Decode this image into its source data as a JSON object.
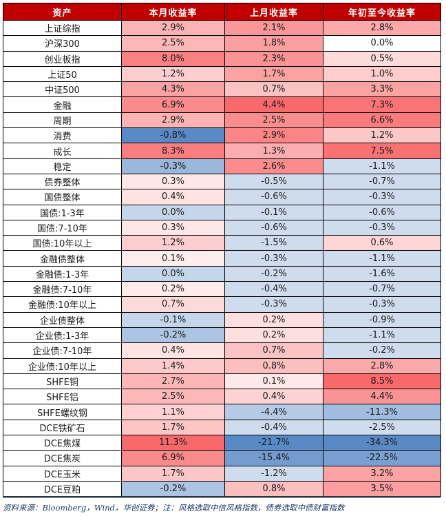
{
  "headers": [
    "资产",
    "本月收益率",
    "上月收益率",
    "年初至今收益率"
  ],
  "rows": [
    {
      "asset": "上证综指",
      "m": "2.9%",
      "pm": "2.1%",
      "ytd": "2.8%"
    },
    {
      "asset": "沪深300",
      "m": "2.5%",
      "pm": "1.8%",
      "ytd": "0.0%"
    },
    {
      "asset": "创业板指",
      "m": "8.0%",
      "pm": "2.3%",
      "ytd": "0.5%"
    },
    {
      "asset": "上证50",
      "m": "1.2%",
      "pm": "1.7%",
      "ytd": "1.0%"
    },
    {
      "asset": "中证500",
      "m": "4.3%",
      "pm": "0.7%",
      "ytd": "3.3%"
    },
    {
      "asset": "金融",
      "m": "6.9%",
      "pm": "4.4%",
      "ytd": "7.3%"
    },
    {
      "asset": "周期",
      "m": "2.9%",
      "pm": "2.5%",
      "ytd": "6.6%"
    },
    {
      "asset": "消费",
      "m": "-0.8%",
      "pm": "2.9%",
      "ytd": "1.2%"
    },
    {
      "asset": "成长",
      "m": "8.3%",
      "pm": "1.3%",
      "ytd": "7.5%"
    },
    {
      "asset": "稳定",
      "m": "-0.3%",
      "pm": "2.6%",
      "ytd": "-1.1%"
    },
    {
      "asset": "债券整体",
      "m": "0.3%",
      "pm": "-0.5%",
      "ytd": "-0.7%"
    },
    {
      "asset": "国债整体",
      "m": "0.4%",
      "pm": "-0.6%",
      "ytd": "-0.3%"
    },
    {
      "asset": "国债:1-3年",
      "m": "0.0%",
      "pm": "-0.1%",
      "ytd": "-0.6%"
    },
    {
      "asset": "国债:7-10年",
      "m": "0.3%",
      "pm": "-0.6%",
      "ytd": "-0.3%"
    },
    {
      "asset": "国债:10年以上",
      "m": "1.2%",
      "pm": "-1.5%",
      "ytd": "0.6%"
    },
    {
      "asset": "金融债整体",
      "m": "0.1%",
      "pm": "-0.3%",
      "ytd": "-1.1%"
    },
    {
      "asset": "金融债:1-3年",
      "m": "0.0%",
      "pm": "-0.2%",
      "ytd": "-1.6%"
    },
    {
      "asset": "金融债:7-10年",
      "m": "0.2%",
      "pm": "-0.4%",
      "ytd": "-0.7%"
    },
    {
      "asset": "金融债:10年以上",
      "m": "0.7%",
      "pm": "-0.3%",
      "ytd": "-0.3%"
    },
    {
      "asset": "企业债整体",
      "m": "-0.1%",
      "pm": "0.2%",
      "ytd": "-0.9%"
    },
    {
      "asset": "企业债:1-3年",
      "m": "-0.2%",
      "pm": "0.2%",
      "ytd": "-1.1%"
    },
    {
      "asset": "企业债:7-10年",
      "m": "0.4%",
      "pm": "0.7%",
      "ytd": "-0.2%"
    },
    {
      "asset": "企业债:10年以上",
      "m": "1.4%",
      "pm": "0.8%",
      "ytd": "2.8%"
    },
    {
      "asset": "SHFE铜",
      "m": "2.7%",
      "pm": "0.1%",
      "ytd": "8.5%"
    },
    {
      "asset": "SHFE铝",
      "m": "2.5%",
      "pm": "0.4%",
      "ytd": "4.4%"
    },
    {
      "asset": "SHFE螺纹钢",
      "m": "1.1%",
      "pm": "-4.4%",
      "ytd": "-11.3%"
    },
    {
      "asset": "DCE铁矿石",
      "m": "1.7%",
      "pm": "-0.4%",
      "ytd": "-2.5%"
    },
    {
      "asset": "DCE焦煤",
      "m": "11.3%",
      "pm": "-21.7%",
      "ytd": "-34.3%"
    },
    {
      "asset": "DCE焦炭",
      "m": "6.9%",
      "pm": "-15.4%",
      "ytd": "-22.5%"
    },
    {
      "asset": "DCE玉米",
      "m": "1.7%",
      "pm": "-1.2%",
      "ytd": "3.2%"
    },
    {
      "asset": "DCE豆粕",
      "m": "-0.2%",
      "pm": "0.8%",
      "ytd": "3.5%"
    }
  ],
  "colors": {
    "header_bg": "#c00000",
    "positive_max": "#f8696b",
    "negative_max": "#5a8ac6",
    "neutral": "#ffffff"
  },
  "footer": "资料来源：Bloomberg，Wind，华创证券；注：风格选取中信风格指数，债券选取中债财富指数"
}
